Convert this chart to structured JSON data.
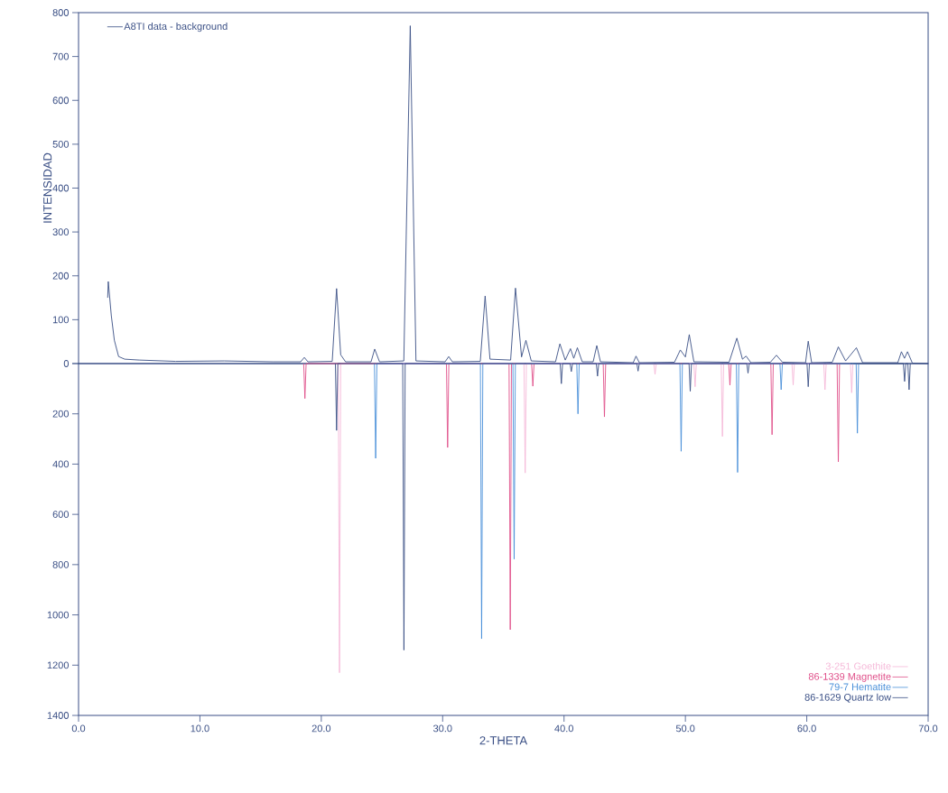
{
  "chart_data": [
    {
      "type": "line",
      "ylabel": "INTENSIDAD",
      "xlim": [
        0,
        70
      ],
      "ylim": [
        0,
        800
      ],
      "yticks": [
        0,
        100,
        200,
        300,
        400,
        500,
        600,
        700,
        800
      ],
      "tick_labels": "y",
      "legend": "top left",
      "grid": false,
      "series": [
        {
          "name": "A8TI data - background",
          "color": "#3a4f85",
          "x": [
            2.4,
            2.45,
            2.7,
            2.95,
            3.3,
            3.8,
            5,
            8,
            12,
            16,
            18.3,
            18.6,
            18.9,
            20.9,
            21.26,
            21.6,
            22,
            24.1,
            24.4,
            24.8,
            26.8,
            27.33,
            27.8,
            30.2,
            30.5,
            30.8,
            33.1,
            33.5,
            33.9,
            35.6,
            36.0,
            36.5,
            36.86,
            37.3,
            39.3,
            39.66,
            40.1,
            40.53,
            40.8,
            41.1,
            41.5,
            42.4,
            42.7,
            43.0,
            45.7,
            45.93,
            46.2,
            49.1,
            49.58,
            50.0,
            50.32,
            50.7,
            53.6,
            54.24,
            54.7,
            55.0,
            55.4,
            57.0,
            57.5,
            58.0,
            59.9,
            60.12,
            60.4,
            62.1,
            62.6,
            63.2,
            64.09,
            64.6,
            67.5,
            67.8,
            68.05,
            68.3,
            68.7,
            70
          ],
          "values": [
            150,
            187,
            109,
            53,
            16,
            10,
            8,
            5,
            6,
            4,
            4,
            14,
            4,
            5,
            171,
            20,
            4,
            4,
            33,
            4,
            6,
            770,
            6,
            4,
            16,
            4,
            5,
            154,
            10,
            8,
            172,
            15,
            53,
            6,
            4,
            45,
            8,
            34,
            12,
            36,
            4,
            4,
            41,
            4,
            2,
            17,
            2,
            3,
            31,
            15,
            66,
            4,
            3,
            58,
            10,
            17,
            2,
            3,
            19,
            3,
            2,
            51,
            2,
            3,
            38,
            6,
            36,
            2,
            2,
            27,
            12,
            27,
            1,
            0
          ]
        }
      ]
    },
    {
      "type": "line",
      "xlabel": "2-THETA",
      "xlim": [
        0,
        70
      ],
      "xticks": [
        {
          "value": 0,
          "label": "0.0"
        },
        {
          "value": 10,
          "label": "10.0"
        },
        {
          "value": 20,
          "label": "20.0"
        },
        {
          "value": 30,
          "label": "30.0"
        },
        {
          "value": 40,
          "label": "40.0"
        },
        {
          "value": 50,
          "label": "50.0"
        },
        {
          "value": 60,
          "label": "60.0"
        },
        {
          "value": 70,
          "label": "70.0"
        }
      ],
      "ylim": [
        1400,
        0
      ],
      "yticks": [
        {
          "value": 0,
          "label": null
        },
        200,
        400,
        600,
        800,
        1000,
        1200,
        1400
      ],
      "legend": "bottom right",
      "grid": false,
      "series": [
        {
          "name": "3-251 Goethite",
          "color": "#f5b8d8",
          "x": [
            21.4,
            21.5,
            21.6,
            36.7,
            36.8,
            36.9,
            47.4,
            47.5,
            47.6,
            50.7,
            50.8,
            50.9,
            52.95,
            53.05,
            53.15,
            58.78,
            58.88,
            58.98,
            61.4,
            61.5,
            61.6,
            63.6,
            63.7,
            63.8
          ],
          "values": [
            0,
            1230,
            0,
            0,
            435,
            0,
            0,
            43,
            0,
            0,
            92,
            0,
            0,
            290,
            0,
            0,
            85,
            0,
            0,
            104,
            0,
            0,
            116,
            0
          ]
        },
        {
          "name": "86-1339 Magnetite",
          "color": "#e0508a",
          "x": [
            18.55,
            18.65,
            18.75,
            30.31,
            30.41,
            30.51,
            35.47,
            35.57,
            35.67,
            37.33,
            37.43,
            37.53,
            43.23,
            43.33,
            43.43,
            53.57,
            53.67,
            53.77,
            57.04,
            57.14,
            57.24,
            62.5,
            62.6,
            62.7
          ],
          "values": [
            0,
            139,
            0,
            0,
            334,
            0,
            0,
            1059,
            0,
            0,
            90,
            0,
            0,
            212,
            0,
            0,
            86,
            0,
            0,
            283,
            0,
            0,
            391,
            0
          ]
        },
        {
          "name": "79-7 Hematite",
          "color": "#4a90d9",
          "x": [
            24.38,
            24.48,
            24.58,
            33.11,
            33.21,
            33.31,
            35.79,
            35.89,
            35.99,
            41.05,
            41.15,
            41.25,
            49.55,
            49.65,
            49.75,
            54.2,
            54.3,
            54.4,
            57.79,
            57.89,
            57.99,
            64.07,
            64.17,
            64.27
          ],
          "values": [
            0,
            377,
            0,
            0,
            1095,
            0,
            0,
            778,
            0,
            0,
            200,
            0,
            0,
            349,
            0,
            0,
            433,
            0,
            0,
            104,
            0,
            0,
            277,
            0
          ]
        },
        {
          "name": "86-1629 Quartz low",
          "color": "#3a4f85",
          "x": [
            21.16,
            21.26,
            21.36,
            26.71,
            26.81,
            26.91,
            39.68,
            39.78,
            39.88,
            40.5,
            40.6,
            40.7,
            42.66,
            42.76,
            42.86,
            46.0,
            46.1,
            46.2,
            50.3,
            50.4,
            50.5,
            55.06,
            55.16,
            55.26,
            60.02,
            60.12,
            60.22,
            67.96,
            68.06,
            68.16,
            68.33,
            68.43,
            68.53
          ],
          "values": [
            0,
            266,
            0,
            0,
            1140,
            0,
            0,
            80,
            0,
            0,
            32,
            0,
            0,
            50,
            0,
            0,
            30,
            0,
            0,
            110,
            0,
            0,
            38,
            0,
            0,
            92,
            0,
            0,
            71,
            0,
            0,
            104,
            0
          ]
        }
      ]
    }
  ]
}
